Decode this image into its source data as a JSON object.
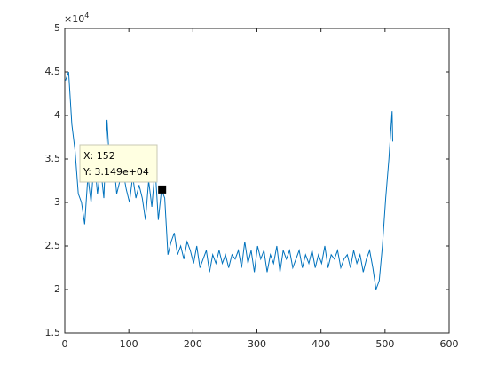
{
  "chart_data": {
    "type": "line",
    "y_multiplier_base": "×10",
    "y_multiplier_exp": "4",
    "x": [
      1,
      6,
      11,
      16,
      21,
      26,
      31,
      36,
      41,
      46,
      51,
      56,
      61,
      66,
      71,
      76,
      81,
      86,
      91,
      96,
      101,
      106,
      111,
      116,
      121,
      126,
      131,
      136,
      141,
      146,
      151,
      156,
      161,
      166,
      171,
      176,
      181,
      186,
      191,
      196,
      201,
      206,
      211,
      216,
      221,
      226,
      231,
      236,
      241,
      246,
      251,
      256,
      261,
      266,
      271,
      276,
      281,
      286,
      291,
      296,
      301,
      306,
      311,
      316,
      321,
      326,
      331,
      336,
      341,
      346,
      351,
      356,
      361,
      366,
      371,
      376,
      381,
      386,
      391,
      396,
      401,
      406,
      411,
      416,
      421,
      426,
      431,
      436,
      441,
      446,
      451,
      456,
      461,
      466,
      471,
      476,
      481,
      486,
      491,
      496,
      501,
      506,
      511,
      512
    ],
    "series": [
      {
        "color": "#0072bd",
        "values": [
          44000,
          45000,
          39000,
          36000,
          31000,
          30000,
          27500,
          33000,
          30000,
          35000,
          31000,
          34000,
          30500,
          39500,
          33000,
          35000,
          31000,
          32500,
          33500,
          31500,
          30000,
          33000,
          30500,
          32000,
          30500,
          28000,
          32500,
          29500,
          34000,
          28000,
          31500,
          30500,
          24000,
          25500,
          26500,
          24000,
          25000,
          23500,
          25500,
          24500,
          23000,
          25000,
          22500,
          23500,
          24500,
          22000,
          24000,
          23000,
          24500,
          23000,
          24000,
          22500,
          24000,
          23500,
          24500,
          22500,
          25500,
          23000,
          24500,
          22000,
          25000,
          23500,
          24500,
          22000,
          24000,
          23000,
          25000,
          22000,
          24500,
          23500,
          24500,
          22500,
          23500,
          24500,
          22500,
          24000,
          23000,
          24500,
          22500,
          24000,
          23000,
          25000,
          22500,
          24000,
          23500,
          24500,
          22500,
          23500,
          24000,
          22500,
          24500,
          23000,
          24000,
          22000,
          23500,
          24500,
          22500,
          20000,
          21000,
          25000,
          30500,
          35000,
          40500,
          37000
        ]
      }
    ],
    "xlim": [
      0,
      600
    ],
    "xticks": [
      0,
      100,
      200,
      300,
      400,
      500,
      600
    ],
    "ylim": [
      15000,
      50000
    ],
    "yticks": [
      {
        "value": 15000,
        "label": "1.5"
      },
      {
        "value": 20000,
        "label": "2"
      },
      {
        "value": 25000,
        "label": "2.5"
      },
      {
        "value": 30000,
        "label": "3"
      },
      {
        "value": 35000,
        "label": "3.5"
      },
      {
        "value": 40000,
        "label": "4"
      },
      {
        "value": 45000,
        "label": "4.5"
      },
      {
        "value": 50000,
        "label": "5"
      }
    ],
    "datatip": {
      "x": 152,
      "y": 31490,
      "x_label": "X: 152",
      "y_label": "Y: 3.149e+04"
    }
  }
}
